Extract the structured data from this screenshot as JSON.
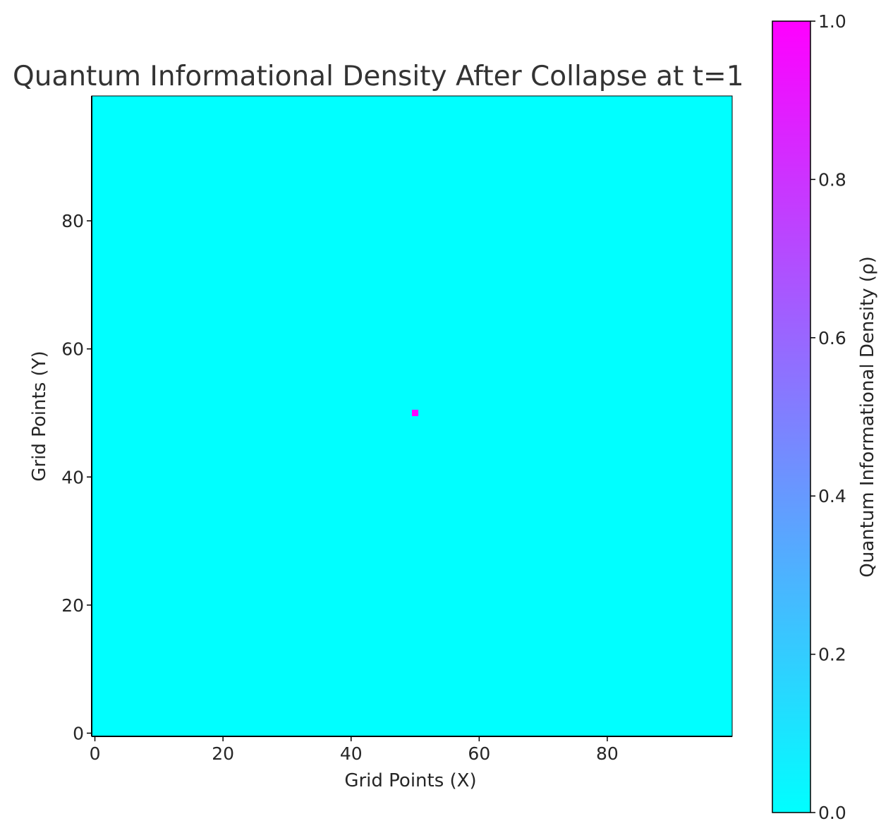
{
  "chart_data": {
    "type": "heatmap",
    "title": "Quantum Informational Density After Collapse at t=1",
    "xlabel": "Grid Points (X)",
    "ylabel": "Grid Points (Y)",
    "grid_size": [
      100,
      100
    ],
    "xlim": [
      0,
      99
    ],
    "ylim": [
      0,
      99
    ],
    "xticks": [
      0,
      20,
      40,
      60,
      80
    ],
    "xtick_labels": [
      "0",
      "20",
      "40",
      "60",
      "80"
    ],
    "yticks": [
      0,
      20,
      40,
      60,
      80
    ],
    "ytick_labels": [
      "0",
      "20",
      "40",
      "60",
      "80"
    ],
    "background_value": 0.0,
    "points": [
      {
        "x": 50,
        "y": 50,
        "value": 1.0
      }
    ],
    "colormap": "cool",
    "colormap_low_color": "#00ffff",
    "colormap_high_color": "#ff00ff",
    "grid": false,
    "colorbar": {
      "label": "Quantum Informational Density (ρ)",
      "range": [
        0.0,
        1.0
      ],
      "ticks": [
        0.0,
        0.2,
        0.4,
        0.6,
        0.8,
        1.0
      ],
      "tick_labels": [
        "0.0",
        "0.2",
        "0.4",
        "0.6",
        "0.8",
        "1.0"
      ],
      "position": "right"
    }
  }
}
